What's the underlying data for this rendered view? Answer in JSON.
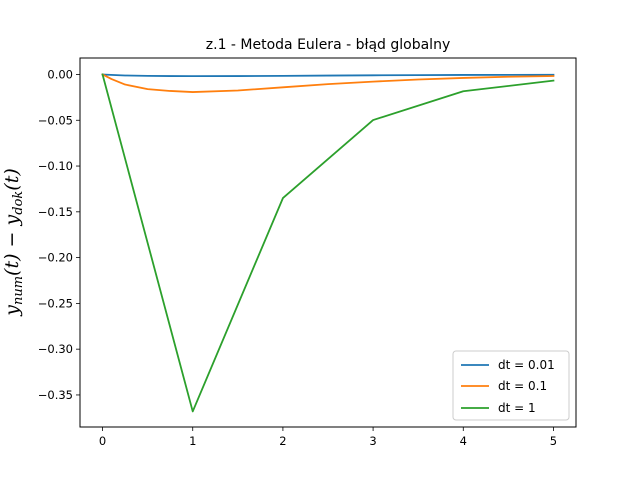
{
  "chart_data": {
    "type": "line",
    "title": "z.1 - Metoda Eulera - błąd globalny",
    "xlabel": "",
    "ylabel": {
      "main1": "y",
      "sub1": "num",
      "mid": "(t) − y",
      "sub2": "dok",
      "tail": "(t)"
    },
    "xlim": [
      -0.25,
      5.25
    ],
    "ylim": [
      -0.385,
      0.018
    ],
    "xticks": [
      0,
      1,
      2,
      3,
      4,
      5
    ],
    "yticks": [
      0.0,
      -0.05,
      -0.1,
      -0.15,
      -0.2,
      -0.25,
      -0.3,
      -0.35
    ],
    "ytick_labels": [
      "0.00",
      "−0.05",
      "−0.10",
      "−0.15",
      "−0.20",
      "−0.25",
      "−0.30",
      "−0.35"
    ],
    "grid": false,
    "legend_position": "lower-right",
    "series": [
      {
        "name": "dt = 0.01",
        "color": "#1f77b4",
        "x": [
          0,
          0.25,
          0.5,
          0.75,
          1,
          1.5,
          2,
          2.5,
          3,
          3.5,
          4,
          4.5,
          5
        ],
        "y": [
          0,
          -0.0011,
          -0.0015,
          -0.0017,
          -0.0018,
          -0.0017,
          -0.0015,
          -0.0012,
          -0.0009,
          -0.0007,
          -0.0005,
          -0.0004,
          -0.0003
        ]
      },
      {
        "name": "dt = 0.1",
        "color": "#ff7f0e",
        "x": [
          0,
          0.1,
          0.25,
          0.5,
          0.75,
          1,
          1.5,
          2,
          2.5,
          3,
          3.5,
          4,
          4.5,
          5
        ],
        "y": [
          0,
          -0.005,
          -0.011,
          -0.016,
          -0.018,
          -0.0192,
          -0.0175,
          -0.014,
          -0.0105,
          -0.0078,
          -0.0055,
          -0.0038,
          -0.0025,
          -0.0017
        ]
      },
      {
        "name": "dt = 1",
        "color": "#2ca02c",
        "x": [
          0,
          1,
          2,
          3,
          4,
          5
        ],
        "y": [
          0,
          -0.368,
          -0.135,
          -0.0498,
          -0.0183,
          -0.0067
        ]
      }
    ]
  }
}
